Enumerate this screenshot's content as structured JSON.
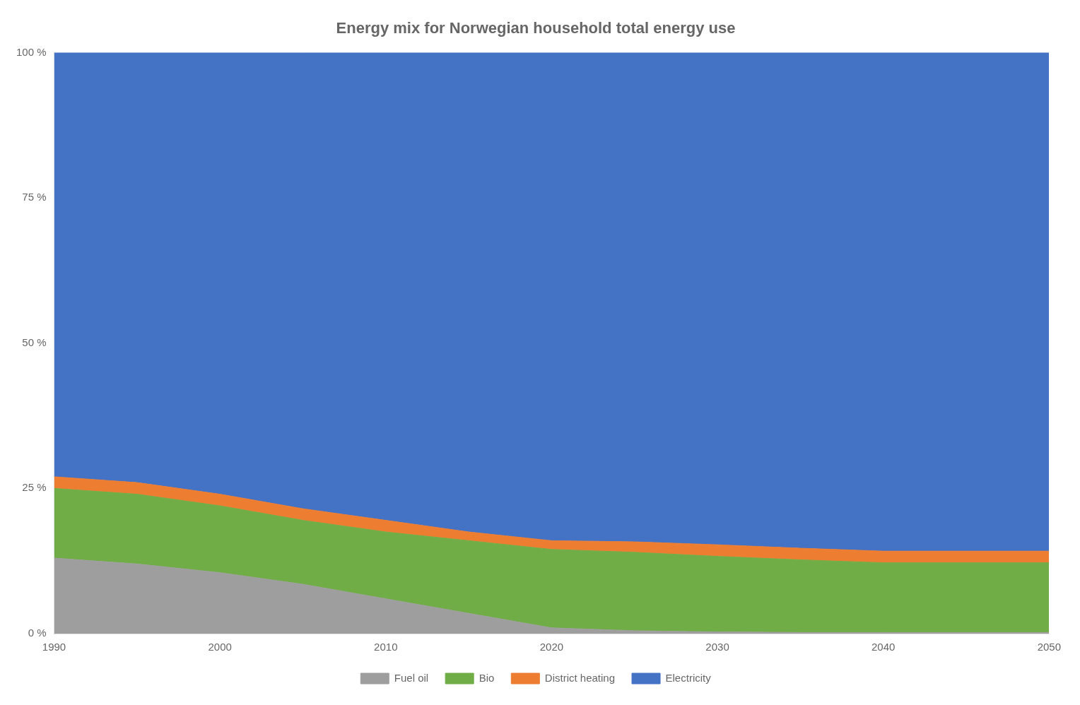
{
  "chart_data": {
    "type": "area",
    "title": "Energy mix for Norwegian household total energy use",
    "stacked": true,
    "x": [
      1990,
      1995,
      2000,
      2005,
      2010,
      2015,
      2020,
      2025,
      2030,
      2035,
      2040,
      2045,
      2050
    ],
    "series": [
      {
        "name": "Fuel oil",
        "color": "#9E9E9E",
        "values": [
          13.0,
          12.0,
          10.5,
          8.5,
          6.0,
          3.5,
          1.0,
          0.5,
          0.3,
          0.2,
          0.2,
          0.2,
          0.2
        ]
      },
      {
        "name": "Bio",
        "color": "#70AD47",
        "values": [
          12.0,
          12.0,
          11.5,
          11.0,
          11.5,
          12.5,
          13.5,
          13.5,
          13.0,
          12.5,
          12.0,
          12.0,
          12.0
        ]
      },
      {
        "name": "District heating",
        "color": "#ED7D31",
        "values": [
          2.0,
          2.0,
          2.0,
          2.0,
          2.0,
          1.5,
          1.5,
          1.8,
          2.0,
          2.0,
          2.0,
          2.0,
          2.0
        ]
      },
      {
        "name": "Electricity",
        "color": "#4472C4",
        "values": [
          73.0,
          74.0,
          76.0,
          78.5,
          80.5,
          82.5,
          84.0,
          84.2,
          84.7,
          85.3,
          85.8,
          85.8,
          85.8
        ]
      }
    ],
    "xlim": [
      1990,
      2050
    ],
    "xticks": [
      1990,
      2000,
      2010,
      2020,
      2030,
      2040,
      2050
    ],
    "ylim": [
      0,
      100
    ],
    "yticks": [
      {
        "value": 0,
        "label": "0 %"
      },
      {
        "value": 25,
        "label": "25 %"
      },
      {
        "value": 50,
        "label": "50 %"
      },
      {
        "value": 75,
        "label": "75 %"
      },
      {
        "value": 100,
        "label": "100 %"
      }
    ],
    "grid": false,
    "legend": "bottom"
  }
}
